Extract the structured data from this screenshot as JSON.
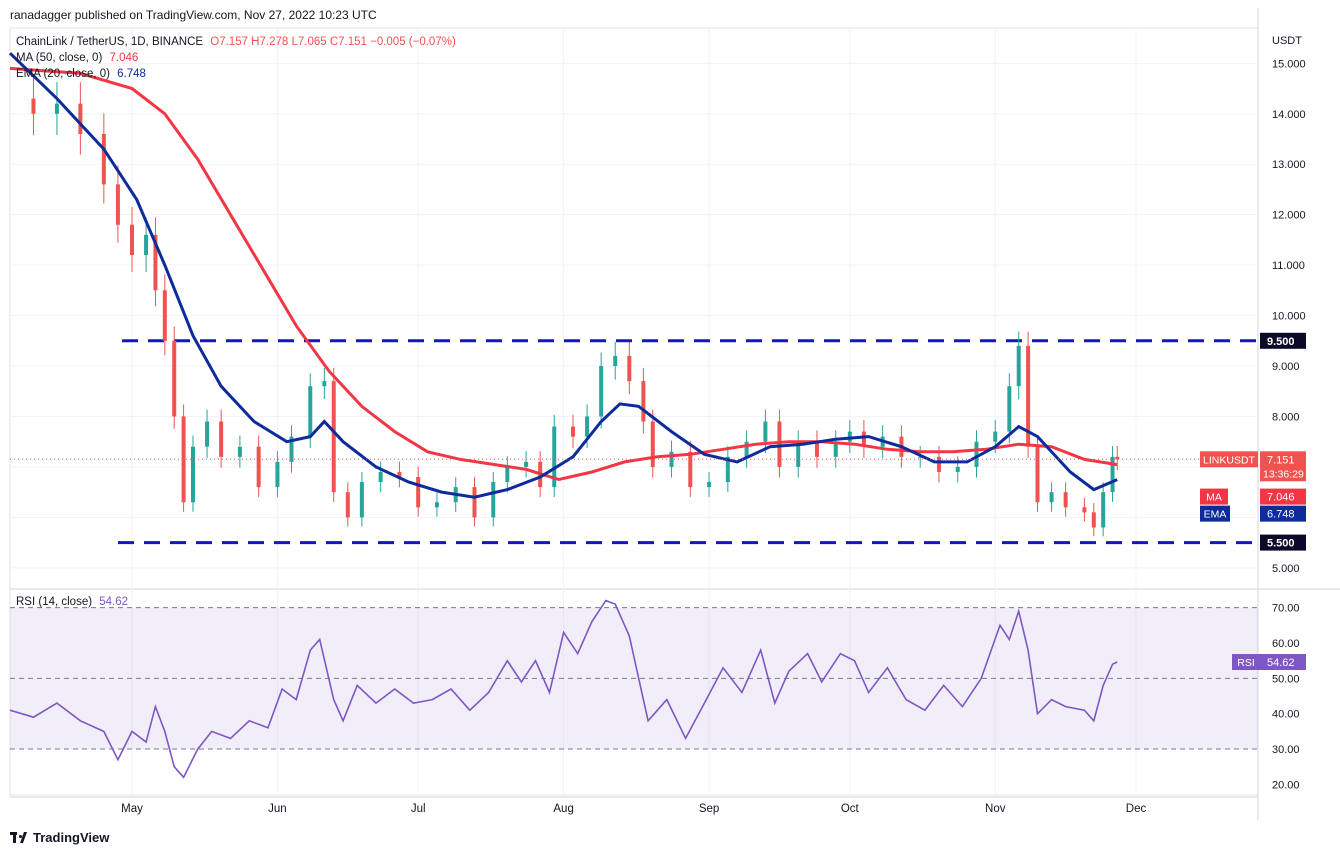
{
  "header": {
    "text": "ranadagger published on TradingView.com, Nov 27, 2022 10:23 UTC"
  },
  "legend": {
    "symbol": "ChainLink / TetherUS, 1D, BINANCE",
    "ohlc": "O7.157  H7.278  L7.065  C7.151  −0.005 (−0.07%)",
    "ma_label": "MA (50, close, 0)",
    "ma_value": "7.046",
    "ema_label": "EMA (20, close, 0)",
    "ema_value": "6.748",
    "rsi_label": "RSI (14, close)",
    "rsi_value": "54.62"
  },
  "footer": {
    "brand": "TradingView"
  },
  "colors": {
    "up": "#26a69a",
    "down": "#ef5350",
    "ma": "#f23645",
    "ema": "#0d2b9a",
    "rsi": "#7e57c2",
    "levels": "#1414c8"
  },
  "chart_data": [
    {
      "type": "candlestick",
      "title": "ChainLink / TetherUS, 1D, BINANCE",
      "yunit": "USDT",
      "ylim": [
        4.6,
        15.7
      ],
      "yticks": [
        5.0,
        6.0,
        7.0,
        8.0,
        9.0,
        10.0,
        11.0,
        12.0,
        13.0,
        14.0,
        15.0
      ],
      "ytick_labels": [
        "5.000",
        "6.000",
        "7.000",
        "8.000",
        "9.000",
        "10.000",
        "11.000",
        "12.000",
        "13.000",
        "14.000",
        "15.000"
      ],
      "xlim": [
        "2022-04-05",
        "2022-12-27"
      ],
      "xticks": [
        "2022-05-01",
        "2022-06-01",
        "2022-07-01",
        "2022-08-01",
        "2022-09-01",
        "2022-10-01",
        "2022-11-01",
        "2022-12-01"
      ],
      "xtick_labels": [
        "May",
        "Jun",
        "Jul",
        "Aug",
        "Sep",
        "Oct",
        "Nov",
        "Dec"
      ],
      "horizontal_levels": [
        {
          "label": "9.500",
          "value": 9.5
        },
        {
          "label": "5.500",
          "value": 5.5
        }
      ],
      "price_badges": [
        {
          "label": "LINKUSDT",
          "value": "7.151",
          "sub": "13:36:29",
          "color": "#ef5350"
        },
        {
          "label": "MA",
          "value": "7.046",
          "color": "#f23645"
        },
        {
          "label": "EMA",
          "value": "6.748",
          "color": "#0d2b9a"
        }
      ],
      "close_series": [
        [
          "2022-04-05",
          14.3
        ],
        [
          "2022-04-10",
          14.0
        ],
        [
          "2022-04-15",
          14.2
        ],
        [
          "2022-04-20",
          13.6
        ],
        [
          "2022-04-25",
          12.6
        ],
        [
          "2022-04-28",
          11.8
        ],
        [
          "2022-05-01",
          11.2
        ],
        [
          "2022-05-04",
          11.6
        ],
        [
          "2022-05-06",
          10.5
        ],
        [
          "2022-05-08",
          9.5
        ],
        [
          "2022-05-10",
          8.0
        ],
        [
          "2022-05-12",
          6.3
        ],
        [
          "2022-05-14",
          7.4
        ],
        [
          "2022-05-17",
          7.9
        ],
        [
          "2022-05-20",
          7.2
        ],
        [
          "2022-05-24",
          7.4
        ],
        [
          "2022-05-28",
          6.6
        ],
        [
          "2022-06-01",
          7.1
        ],
        [
          "2022-06-04",
          7.6
        ],
        [
          "2022-06-08",
          8.6
        ],
        [
          "2022-06-11",
          8.7
        ],
        [
          "2022-06-13",
          6.5
        ],
        [
          "2022-06-16",
          6.0
        ],
        [
          "2022-06-19",
          6.7
        ],
        [
          "2022-06-23",
          6.9
        ],
        [
          "2022-06-27",
          6.8
        ],
        [
          "2022-07-01",
          6.2
        ],
        [
          "2022-07-05",
          6.3
        ],
        [
          "2022-07-09",
          6.6
        ],
        [
          "2022-07-13",
          6.0
        ],
        [
          "2022-07-17",
          6.7
        ],
        [
          "2022-07-20",
          7.0
        ],
        [
          "2022-07-24",
          7.1
        ],
        [
          "2022-07-27",
          6.6
        ],
        [
          "2022-07-30",
          7.8
        ],
        [
          "2022-08-03",
          7.6
        ],
        [
          "2022-08-06",
          8.0
        ],
        [
          "2022-08-09",
          9.0
        ],
        [
          "2022-08-12",
          9.2
        ],
        [
          "2022-08-15",
          8.7
        ],
        [
          "2022-08-18",
          7.9
        ],
        [
          "2022-08-20",
          7.0
        ],
        [
          "2022-08-24",
          7.3
        ],
        [
          "2022-08-28",
          6.6
        ],
        [
          "2022-09-01",
          6.7
        ],
        [
          "2022-09-05",
          7.2
        ],
        [
          "2022-09-09",
          7.5
        ],
        [
          "2022-09-13",
          7.9
        ],
        [
          "2022-09-16",
          7.0
        ],
        [
          "2022-09-20",
          7.5
        ],
        [
          "2022-09-24",
          7.2
        ],
        [
          "2022-09-28",
          7.5
        ],
        [
          "2022-10-01",
          7.7
        ],
        [
          "2022-10-04",
          7.4
        ],
        [
          "2022-10-08",
          7.6
        ],
        [
          "2022-10-12",
          7.2
        ],
        [
          "2022-10-16",
          7.2
        ],
        [
          "2022-10-20",
          6.9
        ],
        [
          "2022-10-24",
          7.0
        ],
        [
          "2022-10-28",
          7.5
        ],
        [
          "2022-11-01",
          7.7
        ],
        [
          "2022-11-04",
          8.6
        ],
        [
          "2022-11-06",
          9.4
        ],
        [
          "2022-11-08",
          7.4
        ],
        [
          "2022-11-10",
          6.3
        ],
        [
          "2022-11-13",
          6.5
        ],
        [
          "2022-11-16",
          6.2
        ],
        [
          "2022-11-20",
          6.1
        ],
        [
          "2022-11-22",
          5.8
        ],
        [
          "2022-11-24",
          6.5
        ],
        [
          "2022-11-26",
          7.2
        ],
        [
          "2022-11-27",
          7.151
        ]
      ],
      "ma50_series": [
        [
          "2022-04-05",
          14.9
        ],
        [
          "2022-04-20",
          14.8
        ],
        [
          "2022-05-01",
          14.5
        ],
        [
          "2022-05-08",
          14.0
        ],
        [
          "2022-05-15",
          13.1
        ],
        [
          "2022-05-22",
          12.0
        ],
        [
          "2022-05-29",
          10.9
        ],
        [
          "2022-06-05",
          9.8
        ],
        [
          "2022-06-12",
          8.9
        ],
        [
          "2022-06-19",
          8.2
        ],
        [
          "2022-06-26",
          7.7
        ],
        [
          "2022-07-03",
          7.3
        ],
        [
          "2022-07-10",
          7.15
        ],
        [
          "2022-07-17",
          7.05
        ],
        [
          "2022-07-24",
          6.95
        ],
        [
          "2022-07-31",
          6.75
        ],
        [
          "2022-08-07",
          6.9
        ],
        [
          "2022-08-14",
          7.1
        ],
        [
          "2022-08-21",
          7.2
        ],
        [
          "2022-08-28",
          7.25
        ],
        [
          "2022-09-04",
          7.35
        ],
        [
          "2022-09-11",
          7.45
        ],
        [
          "2022-09-18",
          7.5
        ],
        [
          "2022-09-25",
          7.5
        ],
        [
          "2022-10-02",
          7.45
        ],
        [
          "2022-10-09",
          7.35
        ],
        [
          "2022-10-16",
          7.3
        ],
        [
          "2022-10-23",
          7.3
        ],
        [
          "2022-10-30",
          7.35
        ],
        [
          "2022-11-06",
          7.45
        ],
        [
          "2022-11-13",
          7.4
        ],
        [
          "2022-11-20",
          7.15
        ],
        [
          "2022-11-27",
          7.046
        ]
      ],
      "ema20_series": [
        [
          "2022-04-05",
          15.2
        ],
        [
          "2022-04-15",
          14.3
        ],
        [
          "2022-04-25",
          13.3
        ],
        [
          "2022-05-02",
          12.3
        ],
        [
          "2022-05-08",
          11.0
        ],
        [
          "2022-05-14",
          9.6
        ],
        [
          "2022-05-20",
          8.6
        ],
        [
          "2022-05-27",
          7.9
        ],
        [
          "2022-06-03",
          7.5
        ],
        [
          "2022-06-08",
          7.6
        ],
        [
          "2022-06-11",
          7.9
        ],
        [
          "2022-06-15",
          7.5
        ],
        [
          "2022-06-22",
          7.0
        ],
        [
          "2022-06-29",
          6.7
        ],
        [
          "2022-07-06",
          6.5
        ],
        [
          "2022-07-13",
          6.4
        ],
        [
          "2022-07-20",
          6.55
        ],
        [
          "2022-07-27",
          6.8
        ],
        [
          "2022-08-03",
          7.2
        ],
        [
          "2022-08-09",
          7.9
        ],
        [
          "2022-08-13",
          8.25
        ],
        [
          "2022-08-17",
          8.2
        ],
        [
          "2022-08-24",
          7.7
        ],
        [
          "2022-08-31",
          7.25
        ],
        [
          "2022-09-07",
          7.1
        ],
        [
          "2022-09-14",
          7.4
        ],
        [
          "2022-09-21",
          7.45
        ],
        [
          "2022-09-28",
          7.55
        ],
        [
          "2022-10-05",
          7.6
        ],
        [
          "2022-10-12",
          7.4
        ],
        [
          "2022-10-19",
          7.1
        ],
        [
          "2022-10-26",
          7.1
        ],
        [
          "2022-11-01",
          7.4
        ],
        [
          "2022-11-06",
          7.8
        ],
        [
          "2022-11-10",
          7.6
        ],
        [
          "2022-11-17",
          6.9
        ],
        [
          "2022-11-22",
          6.55
        ],
        [
          "2022-11-27",
          6.748
        ]
      ]
    },
    {
      "type": "line",
      "title": "RSI (14, close)",
      "ylim": [
        17,
        75
      ],
      "yticks": [
        20,
        30,
        40,
        50,
        60,
        70
      ],
      "ytick_labels": [
        "20.00",
        "30.00",
        "40.00",
        "50.00",
        "60.00",
        "70.00"
      ],
      "band": [
        30,
        70
      ],
      "midline": 50,
      "badge": {
        "label": "RSI",
        "value": "54.62"
      },
      "series": [
        [
          "2022-04-05",
          41
        ],
        [
          "2022-04-10",
          39
        ],
        [
          "2022-04-15",
          43
        ],
        [
          "2022-04-20",
          38
        ],
        [
          "2022-04-25",
          35
        ],
        [
          "2022-04-28",
          27
        ],
        [
          "2022-05-01",
          35
        ],
        [
          "2022-05-04",
          32
        ],
        [
          "2022-05-06",
          42
        ],
        [
          "2022-05-08",
          35
        ],
        [
          "2022-05-10",
          25
        ],
        [
          "2022-05-12",
          22
        ],
        [
          "2022-05-15",
          30
        ],
        [
          "2022-05-18",
          35
        ],
        [
          "2022-05-22",
          33
        ],
        [
          "2022-05-26",
          38
        ],
        [
          "2022-05-30",
          36
        ],
        [
          "2022-06-02",
          47
        ],
        [
          "2022-06-05",
          44
        ],
        [
          "2022-06-08",
          58
        ],
        [
          "2022-06-10",
          61
        ],
        [
          "2022-06-13",
          44
        ],
        [
          "2022-06-15",
          38
        ],
        [
          "2022-06-18",
          48
        ],
        [
          "2022-06-22",
          43
        ],
        [
          "2022-06-26",
          47
        ],
        [
          "2022-06-30",
          43
        ],
        [
          "2022-07-04",
          44
        ],
        [
          "2022-07-08",
          47
        ],
        [
          "2022-07-12",
          41
        ],
        [
          "2022-07-16",
          46
        ],
        [
          "2022-07-20",
          55
        ],
        [
          "2022-07-23",
          49
        ],
        [
          "2022-07-26",
          55
        ],
        [
          "2022-07-29",
          46
        ],
        [
          "2022-08-01",
          63
        ],
        [
          "2022-08-04",
          57
        ],
        [
          "2022-08-07",
          66
        ],
        [
          "2022-08-10",
          72
        ],
        [
          "2022-08-12",
          71
        ],
        [
          "2022-08-15",
          62
        ],
        [
          "2022-08-19",
          38
        ],
        [
          "2022-08-23",
          44
        ],
        [
          "2022-08-27",
          33
        ],
        [
          "2022-08-31",
          43
        ],
        [
          "2022-09-04",
          53
        ],
        [
          "2022-09-08",
          46
        ],
        [
          "2022-09-12",
          58
        ],
        [
          "2022-09-15",
          43
        ],
        [
          "2022-09-18",
          52
        ],
        [
          "2022-09-22",
          57
        ],
        [
          "2022-09-25",
          49
        ],
        [
          "2022-09-29",
          57
        ],
        [
          "2022-10-02",
          55
        ],
        [
          "2022-10-05",
          46
        ],
        [
          "2022-10-09",
          53
        ],
        [
          "2022-10-13",
          44
        ],
        [
          "2022-10-17",
          41
        ],
        [
          "2022-10-21",
          48
        ],
        [
          "2022-10-25",
          42
        ],
        [
          "2022-10-29",
          50
        ],
        [
          "2022-11-02",
          65
        ],
        [
          "2022-11-04",
          61
        ],
        [
          "2022-11-06",
          69
        ],
        [
          "2022-11-08",
          58
        ],
        [
          "2022-11-10",
          40
        ],
        [
          "2022-11-13",
          44
        ],
        [
          "2022-11-16",
          42
        ],
        [
          "2022-11-20",
          41
        ],
        [
          "2022-11-22",
          38
        ],
        [
          "2022-11-24",
          48
        ],
        [
          "2022-11-26",
          54
        ],
        [
          "2022-11-27",
          54.62
        ]
      ]
    }
  ]
}
